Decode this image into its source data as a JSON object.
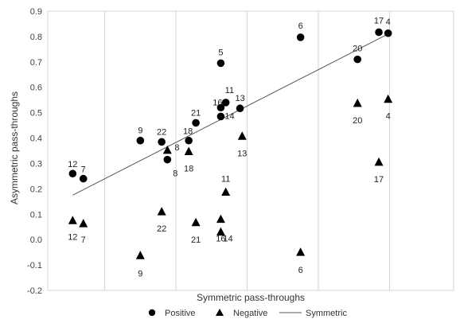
{
  "chart_data": {
    "type": "scatter",
    "title": "",
    "xlabel": "Symmetric pass-throughs",
    "ylabel": "Asymmetric pass-throughs",
    "x_ticks_labeled": false,
    "x_gridlines": [
      0.0,
      0.1,
      0.2,
      0.3,
      0.4
    ],
    "xlim": [
      -0.08,
      0.49
    ],
    "ylim": [
      -0.2,
      0.9
    ],
    "y_ticks": [
      "-0.2",
      "-0.1",
      "0.0",
      "0.1",
      "0.2",
      "0.3",
      "0.4",
      "0.5",
      "0.6",
      "0.7",
      "0.8",
      "0.9"
    ],
    "grid": "vertical",
    "legend_position": "bottom",
    "series": [
      {
        "name": "Positive",
        "marker": "circle",
        "color": "#000000",
        "points": [
          {
            "label": "12",
            "x": -0.045,
            "y": 0.26
          },
          {
            "label": "7",
            "x": -0.03,
            "y": 0.24
          },
          {
            "label": "9",
            "x": 0.05,
            "y": 0.39
          },
          {
            "label": "22",
            "x": 0.08,
            "y": 0.385
          },
          {
            "label": "8",
            "x": 0.088,
            "y": 0.315
          },
          {
            "label": "18",
            "x": 0.118,
            "y": 0.39
          },
          {
            "label": "21",
            "x": 0.128,
            "y": 0.46
          },
          {
            "label": "5",
            "x": 0.163,
            "y": 0.695
          },
          {
            "label": "16",
            "x": 0.163,
            "y": 0.52
          },
          {
            "label": "11",
            "x": 0.17,
            "y": 0.54
          },
          {
            "label": "14",
            "x": 0.163,
            "y": 0.485
          },
          {
            "label": "13",
            "x": 0.19,
            "y": 0.517
          },
          {
            "label": "6",
            "x": 0.275,
            "y": 0.797
          },
          {
            "label": "20",
            "x": 0.355,
            "y": 0.71
          },
          {
            "label": "17",
            "x": 0.385,
            "y": 0.817
          },
          {
            "label": "4",
            "x": 0.398,
            "y": 0.813
          }
        ]
      },
      {
        "name": "Negative",
        "marker": "triangle",
        "color": "#000000",
        "points": [
          {
            "label": "12",
            "x": -0.045,
            "y": 0.075
          },
          {
            "label": "7",
            "x": -0.03,
            "y": 0.063
          },
          {
            "label": "9",
            "x": 0.05,
            "y": -0.063
          },
          {
            "label": "22",
            "x": 0.08,
            "y": 0.11
          },
          {
            "label": "8",
            "x": 0.088,
            "y": 0.352
          },
          {
            "label": "18",
            "x": 0.118,
            "y": 0.347
          },
          {
            "label": "21",
            "x": 0.128,
            "y": 0.067
          },
          {
            "label": "11",
            "x": 0.17,
            "y": 0.187
          },
          {
            "label": "14",
            "x": 0.163,
            "y": 0.03
          },
          {
            "label": "16",
            "x": 0.163,
            "y": 0.08
          },
          {
            "label": "13",
            "x": 0.193,
            "y": 0.407
          },
          {
            "label": "6",
            "x": 0.275,
            "y": -0.05
          },
          {
            "label": "20",
            "x": 0.355,
            "y": 0.537
          },
          {
            "label": "17",
            "x": 0.385,
            "y": 0.305
          },
          {
            "label": "4",
            "x": 0.398,
            "y": 0.553
          }
        ]
      },
      {
        "name": "Symmetric",
        "type": "line",
        "color": "#555555",
        "from": {
          "x": -0.045,
          "y": 0.175
        },
        "to": {
          "x": 0.398,
          "y": 0.81
        }
      }
    ]
  }
}
